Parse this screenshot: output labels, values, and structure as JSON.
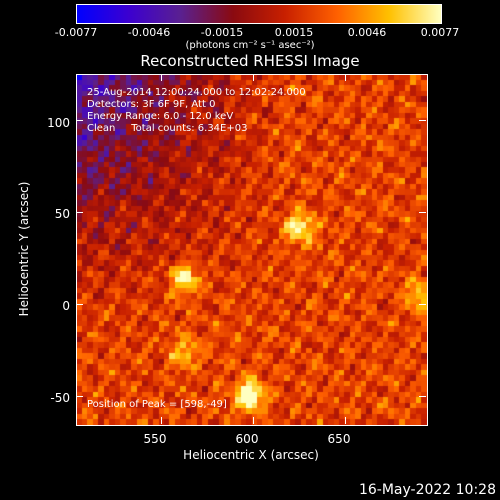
{
  "colorbar": {
    "tick_labels": [
      "-0.0077",
      "-0.0046",
      "-0.0015",
      "0.0015",
      "0.0046",
      "0.0077"
    ],
    "units": "(photons cm⁻² s⁻¹ asec⁻²)",
    "colors": [
      "#0000ff",
      "#3c00d0",
      "#5a2090",
      "#8a0a10",
      "#c82000",
      "#ff6000",
      "#ffc000",
      "#ffffc0"
    ]
  },
  "chart_data": {
    "type": "heatmap",
    "title": "Reconstructed RHESSI Image",
    "xlabel": "Heliocentric X (arcsec)",
    "ylabel": "Heliocentric Y (arcsec)",
    "xlim": [
      504,
      694
    ],
    "ylim": [
      -65,
      125
    ],
    "xticks": [
      550,
      600,
      650
    ],
    "yticks": [
      -50,
      0,
      50,
      100
    ],
    "color_range": [
      -0.0077,
      0.0077
    ],
    "peaks": [
      {
        "x": 598,
        "y": -49,
        "value": 0.0077
      },
      {
        "x": 563,
        "y": 14,
        "value": 0.006
      },
      {
        "x": 625,
        "y": 42,
        "value": 0.0055
      },
      {
        "x": 690,
        "y": 5,
        "value": 0.004
      },
      {
        "x": 563,
        "y": -25,
        "value": 0.0035
      }
    ],
    "annotations": [
      "25-Aug-2014 12:00:24.000 to 12:02:24.000",
      "Detectors: 3F 6F 9F, Att 0",
      "Energy Range: 6.0 - 12.0 keV",
      "Clean     Total counts: 6.34E+03",
      "Position of Peak = [598,-49]"
    ]
  },
  "footer": {
    "date": "16-May-2022 10:28"
  }
}
